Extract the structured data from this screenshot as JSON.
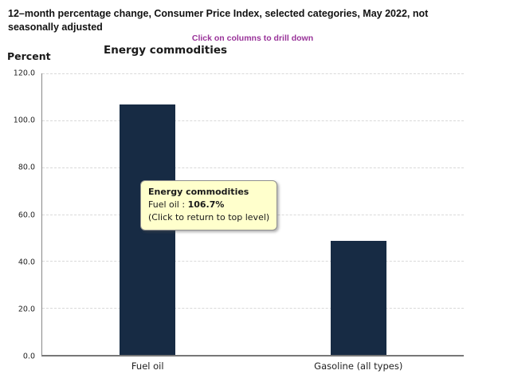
{
  "header": {
    "title": "12–month percentage change, Consumer Price Index, selected categories, May 2022, not seasonally adjusted"
  },
  "drill_hint": "Click on columns to drill down",
  "axis_unit_label": "Percent",
  "chart_title": "Energy commodities",
  "tooltip": {
    "title": "Energy commodities",
    "label": "Fuel oil",
    "separator": " : ",
    "value": "106.7%",
    "note": "(Click to return to top level)"
  },
  "colors": {
    "bar": "#172b44",
    "hint_text": "#993399",
    "tooltip_bg": "#ffffcc",
    "gridline": "#d9d9d9"
  },
  "chart_data": {
    "type": "bar",
    "title": "Energy commodities",
    "categories": [
      "Fuel oil",
      "Gasoline (all types)"
    ],
    "values": [
      106.7,
      48.7
    ],
    "xlabel": "",
    "ylabel": "Percent",
    "ylim": [
      0,
      120
    ],
    "yticks": [
      0,
      20,
      40,
      60,
      80,
      100,
      120
    ],
    "ytick_format": "one_decimal",
    "grid": true,
    "legend": false,
    "annotations": [
      "Tooltip shown for Fuel oil: 106.7% (Click to return to top level)"
    ]
  }
}
